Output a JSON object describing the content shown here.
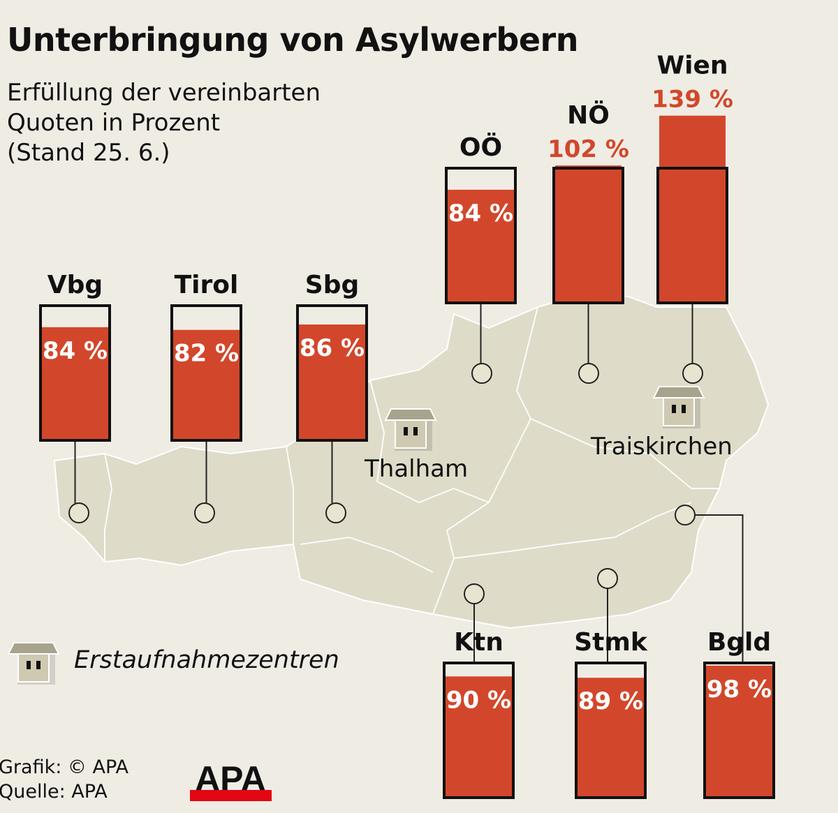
{
  "title": "Unterbringung von Asylwerbern",
  "subtitle": "Erfüllung der vereinbarten\nQuoten in Prozent\n(Stand 25. 6.)",
  "places": [
    "Thalham",
    "Traiskirchen"
  ],
  "legend": {
    "icon": "house-icon",
    "label": "Erstaufnahmezentren"
  },
  "credit": "Grafik: © APA\nQuelle: APA",
  "logo": "APA",
  "colors": {
    "bar": "#d2472b",
    "map": "#dedbc8",
    "background": "#efece4",
    "logo_red": "#e30613"
  },
  "chart_data": {
    "type": "bar",
    "ylabel": "",
    "title": "Unterbringung von Asylwerbern",
    "categories": [
      "Vbg",
      "Tirol",
      "Sbg",
      "OÖ",
      "NÖ",
      "Wien",
      "Ktn",
      "Stmk",
      "Bgld"
    ],
    "values": [
      84,
      82,
      86,
      84,
      102,
      139,
      90,
      89,
      98
    ],
    "labels": [
      "84 %",
      "82 %",
      "86 %",
      "84 %",
      "102 %",
      "139 %",
      "90 %",
      "89 %",
      "98 %"
    ],
    "unit": "%",
    "reference": 100
  }
}
